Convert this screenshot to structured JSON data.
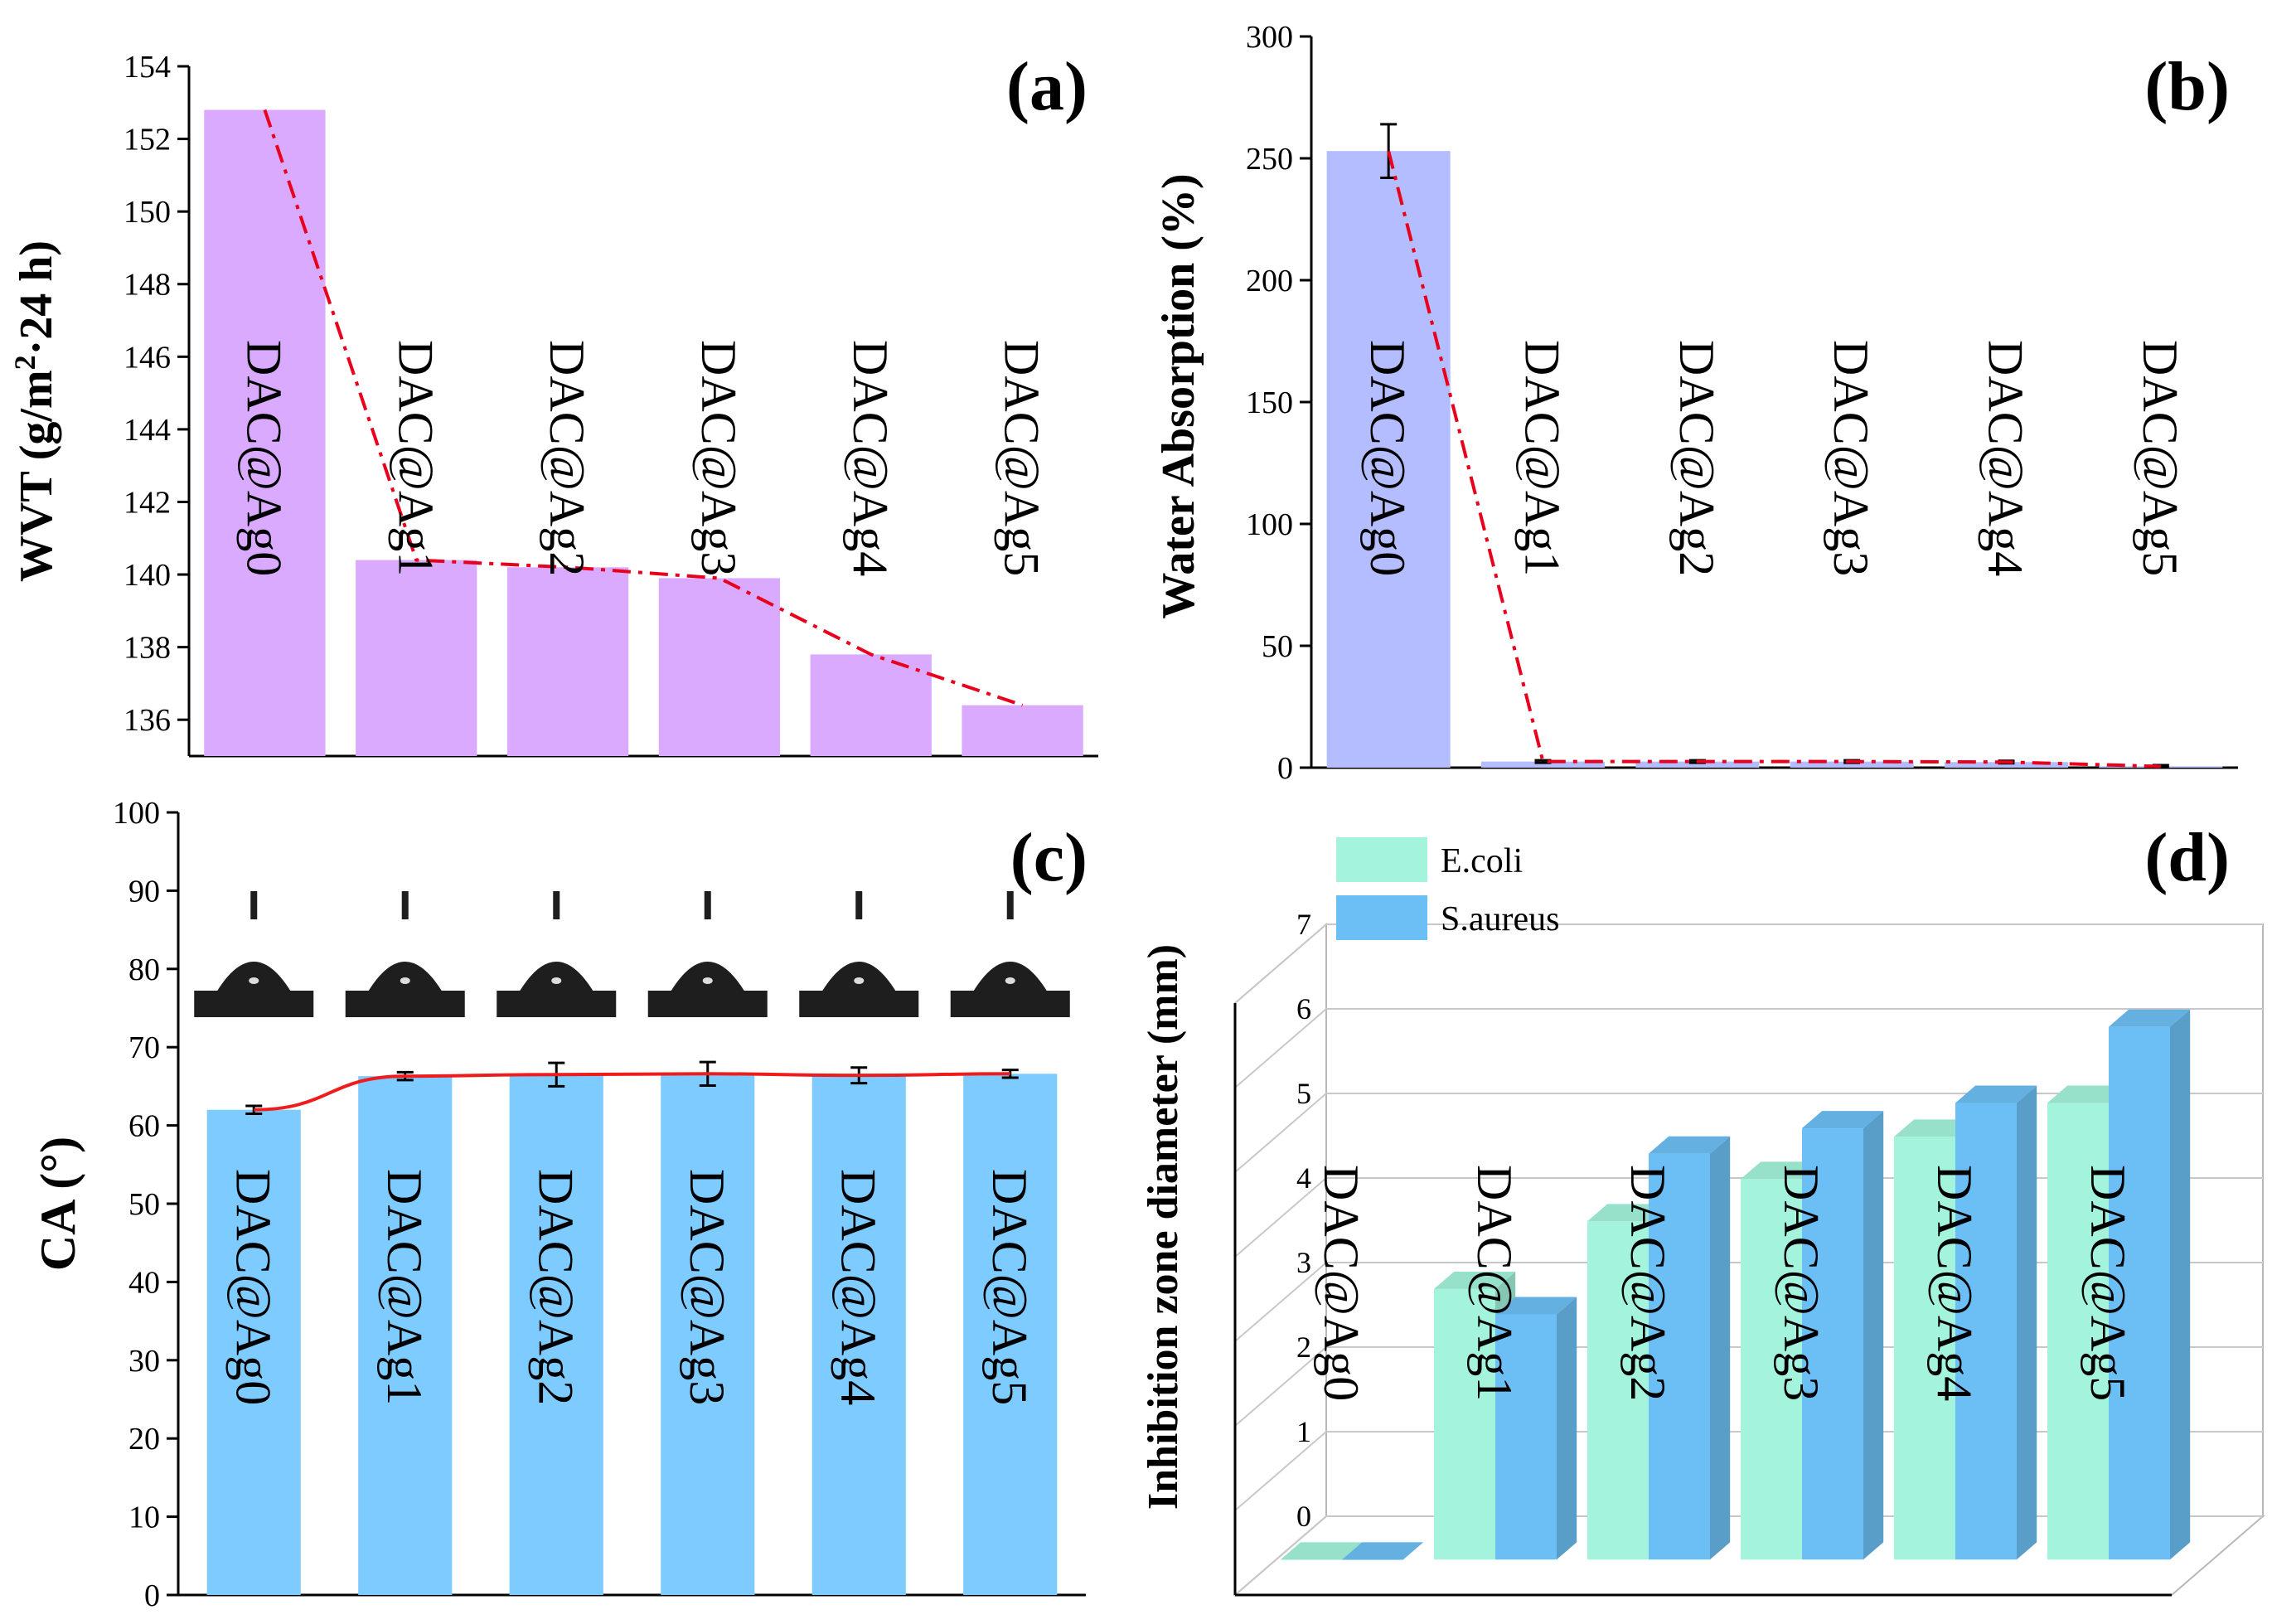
{
  "colors": {
    "bar_a": "#d9aaff",
    "bar_b": "#b4bdff",
    "bar_c": "#7ecbff",
    "line_dash": "#e8001c",
    "line_solid": "#ee1c1c",
    "ecoli": "#a4f3dc",
    "saureus": "#6cbff5",
    "droplet": "#1e1e1e"
  },
  "chart_data": [
    {
      "panel": "(a)",
      "type": "bar",
      "title": "",
      "xlabel": "",
      "ylabel_main": "WVT (g/m",
      "ylabel_sup": "2",
      "ylabel_tail": "·24 h)",
      "categories": [
        "DAC@Ag0",
        "DAC@Ag1",
        "DAC@Ag2",
        "DAC@Ag3",
        "DAC@Ag4",
        "DAC@Ag5"
      ],
      "values": [
        152.8,
        140.4,
        140.2,
        139.9,
        137.8,
        136.4
      ],
      "ylim": [
        135,
        154
      ],
      "yticks": [
        136,
        138,
        140,
        142,
        144,
        146,
        148,
        150,
        152,
        154
      ],
      "line": "dash-dot trend line through bar tops"
    },
    {
      "panel": "(b)",
      "type": "bar",
      "title": "",
      "xlabel": "",
      "ylabel": "Water Absorption (%)",
      "categories": [
        "DAC@Ag0",
        "DAC@Ag1",
        "DAC@Ag2",
        "DAC@Ag3",
        "DAC@Ag4",
        "DAC@Ag5"
      ],
      "values": [
        253,
        2.5,
        2.5,
        2.5,
        2.3,
        0.5
      ],
      "errors": [
        11,
        0.5,
        0.5,
        0.5,
        0.5,
        0.5
      ],
      "ylim": [
        0,
        300
      ],
      "yticks": [
        0,
        50,
        100,
        150,
        200,
        250,
        300
      ],
      "line": "dash-dot trend line through bar tops"
    },
    {
      "panel": "(c)",
      "type": "bar",
      "title": "",
      "xlabel": "",
      "ylabel": "CA (°)",
      "categories": [
        "DAC@Ag0",
        "DAC@Ag1",
        "DAC@Ag2",
        "DAC@Ag3",
        "DAC@Ag4",
        "DAC@Ag5"
      ],
      "values": [
        62,
        66.3,
        66.5,
        66.6,
        66.4,
        66.6
      ],
      "errors": [
        0.5,
        0.5,
        1.5,
        1.5,
        1.0,
        0.5
      ],
      "ylim": [
        0,
        100
      ],
      "yticks": [
        0,
        10,
        20,
        30,
        40,
        50,
        60,
        70,
        80,
        90,
        100
      ],
      "line": "smooth solid line through bar tops",
      "insets": "contact angle droplet photographs above each bar"
    },
    {
      "panel": "(d)",
      "type": "bar",
      "title": "",
      "xlabel": "",
      "ylabel": "Inhibition zone diameter (mm)",
      "categories": [
        "DAC@Ag0",
        "DAC@Ag1",
        "DAC@Ag2",
        "DAC@Ag3",
        "DAC@Ag4",
        "DAC@Ag5"
      ],
      "series": [
        {
          "name": "E.coli",
          "values": [
            0,
            3.2,
            4.0,
            4.5,
            5.0,
            5.4
          ]
        },
        {
          "name": "S.aureus",
          "values": [
            0,
            2.9,
            4.8,
            5.1,
            5.4,
            6.3
          ]
        }
      ],
      "ylim": [
        0,
        7
      ],
      "yticks": [
        0,
        1,
        2,
        3,
        4,
        5,
        6,
        7
      ],
      "legend": "top-left",
      "style": "3D bar chart"
    }
  ]
}
